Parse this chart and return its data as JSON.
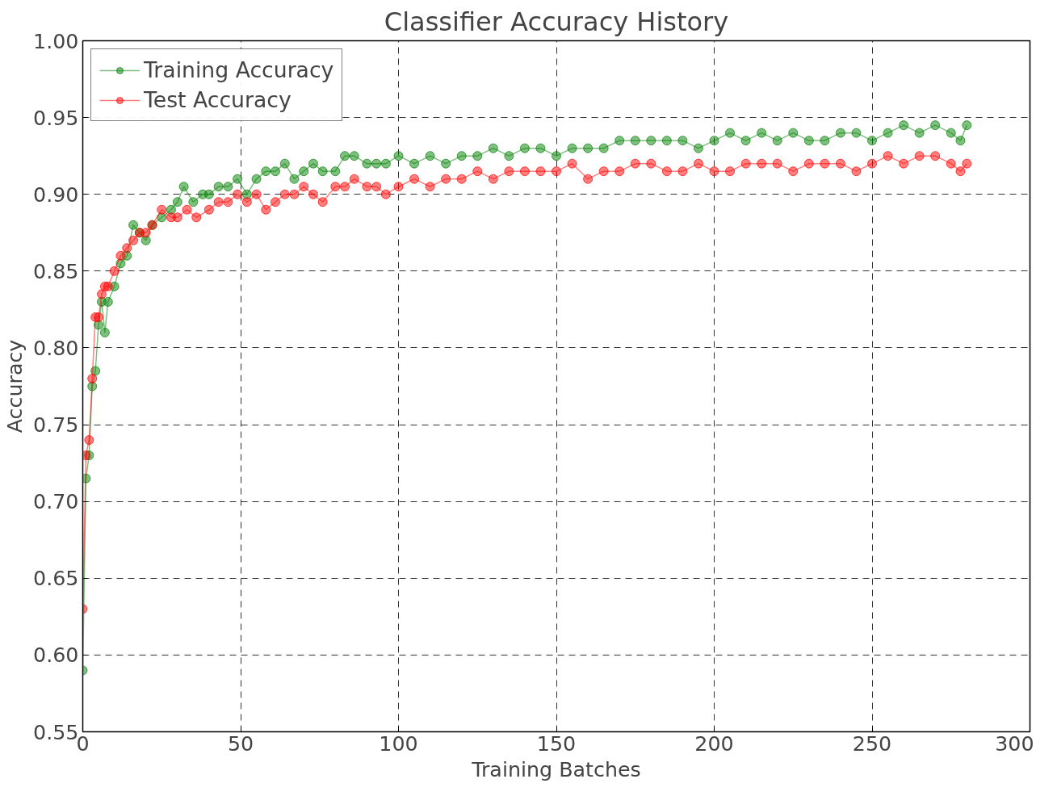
{
  "chart_data": {
    "type": "line",
    "title": "Classifier Accuracy History",
    "xlabel": "Training Batches",
    "ylabel": "Accuracy",
    "xlim": [
      0,
      300
    ],
    "xticks": [
      0,
      50,
      100,
      150,
      200,
      250,
      300
    ],
    "ylim": [
      0.55,
      1.0
    ],
    "yticks": [
      {
        "value": 0.55,
        "label": "0.55"
      },
      {
        "value": 0.6,
        "label": "0.60"
      },
      {
        "value": 0.65,
        "label": "0.65"
      },
      {
        "value": 0.7,
        "label": "0.70"
      },
      {
        "value": 0.75,
        "label": "0.75"
      },
      {
        "value": 0.8,
        "label": "0.80"
      },
      {
        "value": 0.85,
        "label": "0.85"
      },
      {
        "value": 0.9,
        "label": "0.90"
      },
      {
        "value": 0.95,
        "label": "0.95"
      },
      {
        "value": 1.0,
        "label": "1.00"
      }
    ],
    "grid": true,
    "legend": "top left",
    "marker": "circle",
    "line_style": "solid",
    "series": [
      {
        "name": "Training Accuracy",
        "color": "#008000",
        "x": [
          0,
          1,
          2,
          3,
          4,
          5,
          6,
          7,
          8,
          10,
          12,
          14,
          16,
          18,
          20,
          22,
          25,
          28,
          30,
          32,
          35,
          38,
          40,
          43,
          46,
          49,
          52,
          55,
          58,
          61,
          64,
          67,
          70,
          73,
          76,
          80,
          83,
          86,
          90,
          93,
          96,
          100,
          105,
          110,
          115,
          120,
          125,
          130,
          135,
          140,
          145,
          150,
          155,
          160,
          165,
          170,
          175,
          180,
          185,
          190,
          195,
          200,
          205,
          210,
          215,
          220,
          225,
          230,
          235,
          240,
          245,
          250,
          255,
          260,
          265,
          270,
          275,
          278,
          280
        ],
        "values": [
          0.59,
          0.715,
          0.73,
          0.775,
          0.785,
          0.815,
          0.83,
          0.81,
          0.83,
          0.84,
          0.855,
          0.86,
          0.88,
          0.875,
          0.87,
          0.88,
          0.885,
          0.89,
          0.895,
          0.905,
          0.895,
          0.9,
          0.9,
          0.905,
          0.905,
          0.91,
          0.9,
          0.91,
          0.915,
          0.915,
          0.92,
          0.91,
          0.915,
          0.92,
          0.915,
          0.915,
          0.925,
          0.925,
          0.92,
          0.92,
          0.92,
          0.925,
          0.92,
          0.925,
          0.92,
          0.925,
          0.925,
          0.93,
          0.925,
          0.93,
          0.93,
          0.925,
          0.93,
          0.93,
          0.93,
          0.935,
          0.935,
          0.935,
          0.935,
          0.935,
          0.93,
          0.935,
          0.94,
          0.935,
          0.94,
          0.935,
          0.94,
          0.935,
          0.935,
          0.94,
          0.94,
          0.935,
          0.94,
          0.945,
          0.94,
          0.945,
          0.94,
          0.935,
          0.945
        ]
      },
      {
        "name": "Test Accuracy",
        "color": "#ff0000",
        "x": [
          0,
          1,
          2,
          3,
          4,
          5,
          6,
          7,
          8,
          10,
          12,
          14,
          16,
          18,
          20,
          22,
          25,
          28,
          30,
          33,
          36,
          40,
          43,
          46,
          49,
          52,
          55,
          58,
          61,
          64,
          67,
          70,
          73,
          76,
          80,
          83,
          86,
          90,
          93,
          96,
          100,
          105,
          110,
          115,
          120,
          125,
          130,
          135,
          140,
          145,
          150,
          155,
          160,
          165,
          170,
          175,
          180,
          185,
          190,
          195,
          200,
          205,
          210,
          215,
          220,
          225,
          230,
          235,
          240,
          245,
          250,
          255,
          260,
          265,
          270,
          275,
          278,
          280
        ],
        "values": [
          0.63,
          0.73,
          0.74,
          0.78,
          0.82,
          0.82,
          0.835,
          0.84,
          0.84,
          0.85,
          0.86,
          0.865,
          0.87,
          0.875,
          0.875,
          0.88,
          0.89,
          0.885,
          0.885,
          0.89,
          0.885,
          0.89,
          0.895,
          0.895,
          0.9,
          0.895,
          0.9,
          0.89,
          0.895,
          0.9,
          0.9,
          0.905,
          0.9,
          0.895,
          0.905,
          0.905,
          0.91,
          0.905,
          0.905,
          0.9,
          0.905,
          0.91,
          0.905,
          0.91,
          0.91,
          0.915,
          0.91,
          0.915,
          0.915,
          0.915,
          0.915,
          0.92,
          0.91,
          0.915,
          0.915,
          0.92,
          0.92,
          0.915,
          0.915,
          0.92,
          0.915,
          0.915,
          0.92,
          0.92,
          0.92,
          0.915,
          0.92,
          0.92,
          0.92,
          0.915,
          0.92,
          0.925,
          0.92,
          0.925,
          0.925,
          0.92,
          0.915,
          0.92
        ]
      }
    ]
  }
}
